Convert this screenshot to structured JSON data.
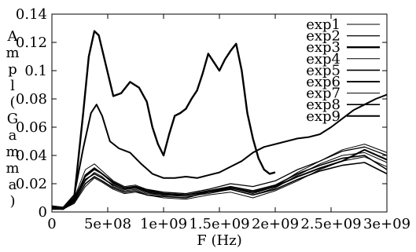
{
  "chart_data": {
    "type": "line",
    "xlabel": "F (Hz)",
    "ylabel_chars": [
      "A",
      "m",
      "p",
      "l",
      "(",
      "G",
      "a",
      "m",
      "m",
      "a",
      ")"
    ],
    "xlim": [
      0,
      3000000000
    ],
    "ylim": [
      0,
      0.14
    ],
    "x_ticks": [
      {
        "value": 0,
        "label": "0"
      },
      {
        "value": 500000000,
        "label": "5e+08"
      },
      {
        "value": 1000000000,
        "label": "1e+09"
      },
      {
        "value": 1500000000,
        "label": "1.5e+09"
      },
      {
        "value": 2000000000,
        "label": "2e+09"
      },
      {
        "value": 2500000000,
        "label": "2.5e+09"
      },
      {
        "value": 3000000000,
        "label": "3e+09"
      }
    ],
    "y_ticks": [
      {
        "value": 0,
        "label": "0"
      },
      {
        "value": 0.02,
        "label": "0.02"
      },
      {
        "value": 0.04,
        "label": "0.04"
      },
      {
        "value": 0.06,
        "label": "0.06"
      },
      {
        "value": 0.08,
        "label": "0.08"
      },
      {
        "value": 0.1,
        "label": "0.1"
      },
      {
        "value": 0.12,
        "label": "0.12"
      },
      {
        "value": 0.14,
        "label": "0.14"
      }
    ],
    "grid": false,
    "legend_position": "top-right",
    "series": [
      {
        "name": "exp1",
        "color": "#000000",
        "width": 1.0,
        "x": [
          0,
          100000000,
          200000000,
          300000000,
          380000000,
          450000000,
          550000000,
          650000000,
          750000000,
          850000000,
          1000000000,
          1200000000,
          1400000000,
          1600000000,
          1800000000,
          2000000000,
          2200000000,
          2400000000,
          2600000000,
          2800000000,
          3000000000
        ],
        "y": [
          0.003,
          0.002,
          0.008,
          0.022,
          0.028,
          0.025,
          0.018,
          0.015,
          0.016,
          0.013,
          0.012,
          0.011,
          0.013,
          0.016,
          0.012,
          0.017,
          0.026,
          0.034,
          0.04,
          0.042,
          0.035
        ]
      },
      {
        "name": "exp2",
        "color": "#000000",
        "width": 1.3,
        "x": [
          0,
          100000000,
          200000000,
          300000000,
          380000000,
          450000000,
          550000000,
          650000000,
          750000000,
          850000000,
          1000000000,
          1200000000,
          1400000000,
          1600000000,
          1800000000,
          2000000000,
          2200000000,
          2400000000,
          2600000000,
          2800000000,
          3000000000
        ],
        "y": [
          0.004,
          0.003,
          0.01,
          0.025,
          0.03,
          0.027,
          0.02,
          0.017,
          0.018,
          0.016,
          0.014,
          0.013,
          0.016,
          0.02,
          0.018,
          0.022,
          0.03,
          0.036,
          0.043,
          0.046,
          0.04
        ]
      },
      {
        "name": "exp3",
        "color": "#000000",
        "width": 2.4,
        "x": [
          0,
          100000000,
          200000000,
          280000000,
          330000000,
          380000000,
          420000000,
          480000000,
          550000000,
          620000000,
          700000000,
          780000000,
          850000000,
          900000000,
          950000000,
          1000000000,
          1050000000,
          1100000000,
          1150000000,
          1200000000,
          1250000000,
          1300000000,
          1350000000,
          1400000000,
          1450000000,
          1500000000,
          1550000000,
          1600000000,
          1650000000,
          1700000000,
          1750000000,
          1800000000,
          1850000000,
          1900000000,
          1950000000,
          2000000000
        ],
        "y": [
          0.004,
          0.003,
          0.01,
          0.07,
          0.11,
          0.128,
          0.125,
          0.105,
          0.082,
          0.084,
          0.092,
          0.088,
          0.078,
          0.06,
          0.048,
          0.04,
          0.055,
          0.068,
          0.07,
          0.073,
          0.08,
          0.086,
          0.098,
          0.112,
          0.106,
          0.1,
          0.108,
          0.114,
          0.119,
          0.1,
          0.07,
          0.052,
          0.038,
          0.03,
          0.027,
          0.028
        ]
      },
      {
        "name": "exp4",
        "color": "#000000",
        "width": 1.0,
        "x": [
          0,
          100000000,
          200000000,
          300000000,
          380000000,
          450000000,
          550000000,
          650000000,
          750000000,
          850000000,
          1000000000,
          1200000000,
          1400000000,
          1600000000,
          1800000000,
          2000000000,
          2200000000,
          2400000000,
          2600000000,
          2800000000,
          3000000000
        ],
        "y": [
          0.002,
          0.002,
          0.006,
          0.018,
          0.024,
          0.021,
          0.016,
          0.013,
          0.014,
          0.012,
          0.01,
          0.009,
          0.012,
          0.014,
          0.01,
          0.015,
          0.022,
          0.03,
          0.036,
          0.039,
          0.032
        ]
      },
      {
        "name": "exp5",
        "color": "#000000",
        "width": 1.6,
        "x": [
          0,
          100000000,
          200000000,
          300000000,
          380000000,
          450000000,
          550000000,
          650000000,
          750000000,
          850000000,
          1000000000,
          1200000000,
          1400000000,
          1600000000,
          1800000000,
          2000000000,
          2200000000,
          2400000000,
          2600000000,
          2800000000,
          3000000000
        ],
        "y": [
          0.003,
          0.003,
          0.009,
          0.023,
          0.027,
          0.024,
          0.019,
          0.016,
          0.017,
          0.014,
          0.012,
          0.012,
          0.015,
          0.018,
          0.015,
          0.019,
          0.027,
          0.033,
          0.038,
          0.04,
          0.03
        ]
      },
      {
        "name": "exp6",
        "color": "#000000",
        "width": 2.0,
        "x": [
          0,
          100000000,
          200000000,
          280000000,
          350000000,
          400000000,
          450000000,
          520000000,
          600000000,
          700000000,
          800000000,
          900000000,
          1000000000,
          1100000000,
          1200000000,
          1300000000,
          1400000000,
          1500000000,
          1600000000,
          1700000000,
          1800000000,
          1900000000,
          2000000000,
          2100000000,
          2200000000,
          2300000000,
          2400000000,
          2500000000,
          2600000000,
          2700000000,
          2800000000,
          2900000000,
          3000000000
        ],
        "y": [
          0.004,
          0.003,
          0.012,
          0.045,
          0.07,
          0.076,
          0.068,
          0.05,
          0.045,
          0.042,
          0.034,
          0.027,
          0.024,
          0.024,
          0.025,
          0.024,
          0.026,
          0.028,
          0.032,
          0.036,
          0.042,
          0.046,
          0.048,
          0.05,
          0.052,
          0.053,
          0.055,
          0.06,
          0.066,
          0.072,
          0.076,
          0.08,
          0.083
        ]
      },
      {
        "name": "exp7",
        "color": "#000000",
        "width": 1.0,
        "x": [
          0,
          100000000,
          200000000,
          300000000,
          380000000,
          450000000,
          550000000,
          650000000,
          750000000,
          850000000,
          1000000000,
          1200000000,
          1400000000,
          1600000000,
          1800000000,
          2000000000,
          2200000000,
          2400000000,
          2600000000,
          2800000000,
          3000000000
        ],
        "y": [
          0.003,
          0.003,
          0.01,
          0.03,
          0.034,
          0.029,
          0.022,
          0.018,
          0.019,
          0.016,
          0.013,
          0.012,
          0.015,
          0.017,
          0.013,
          0.018,
          0.028,
          0.036,
          0.044,
          0.048,
          0.042
        ]
      },
      {
        "name": "exp8",
        "color": "#000000",
        "width": 1.6,
        "x": [
          0,
          100000000,
          200000000,
          300000000,
          380000000,
          450000000,
          550000000,
          650000000,
          750000000,
          850000000,
          1000000000,
          1200000000,
          1400000000,
          1600000000,
          1800000000,
          2000000000,
          2200000000,
          2400000000,
          2600000000,
          2800000000,
          3000000000
        ],
        "y": [
          0.002,
          0.002,
          0.007,
          0.02,
          0.025,
          0.022,
          0.017,
          0.014,
          0.015,
          0.012,
          0.011,
          0.01,
          0.014,
          0.016,
          0.012,
          0.016,
          0.023,
          0.029,
          0.033,
          0.035,
          0.027
        ]
      },
      {
        "name": "exp9",
        "color": "#000000",
        "width": 2.0,
        "x": [
          0,
          100000000,
          200000000,
          300000000,
          380000000,
          450000000,
          550000000,
          650000000,
          750000000,
          850000000,
          1000000000,
          1200000000,
          1400000000,
          1600000000,
          1800000000,
          2000000000,
          2200000000,
          2400000000,
          2600000000,
          2800000000,
          3000000000
        ],
        "y": [
          0.003,
          0.002,
          0.008,
          0.026,
          0.031,
          0.027,
          0.021,
          0.017,
          0.018,
          0.015,
          0.013,
          0.012,
          0.014,
          0.017,
          0.014,
          0.018,
          0.025,
          0.031,
          0.036,
          0.044,
          0.037
        ]
      }
    ]
  }
}
